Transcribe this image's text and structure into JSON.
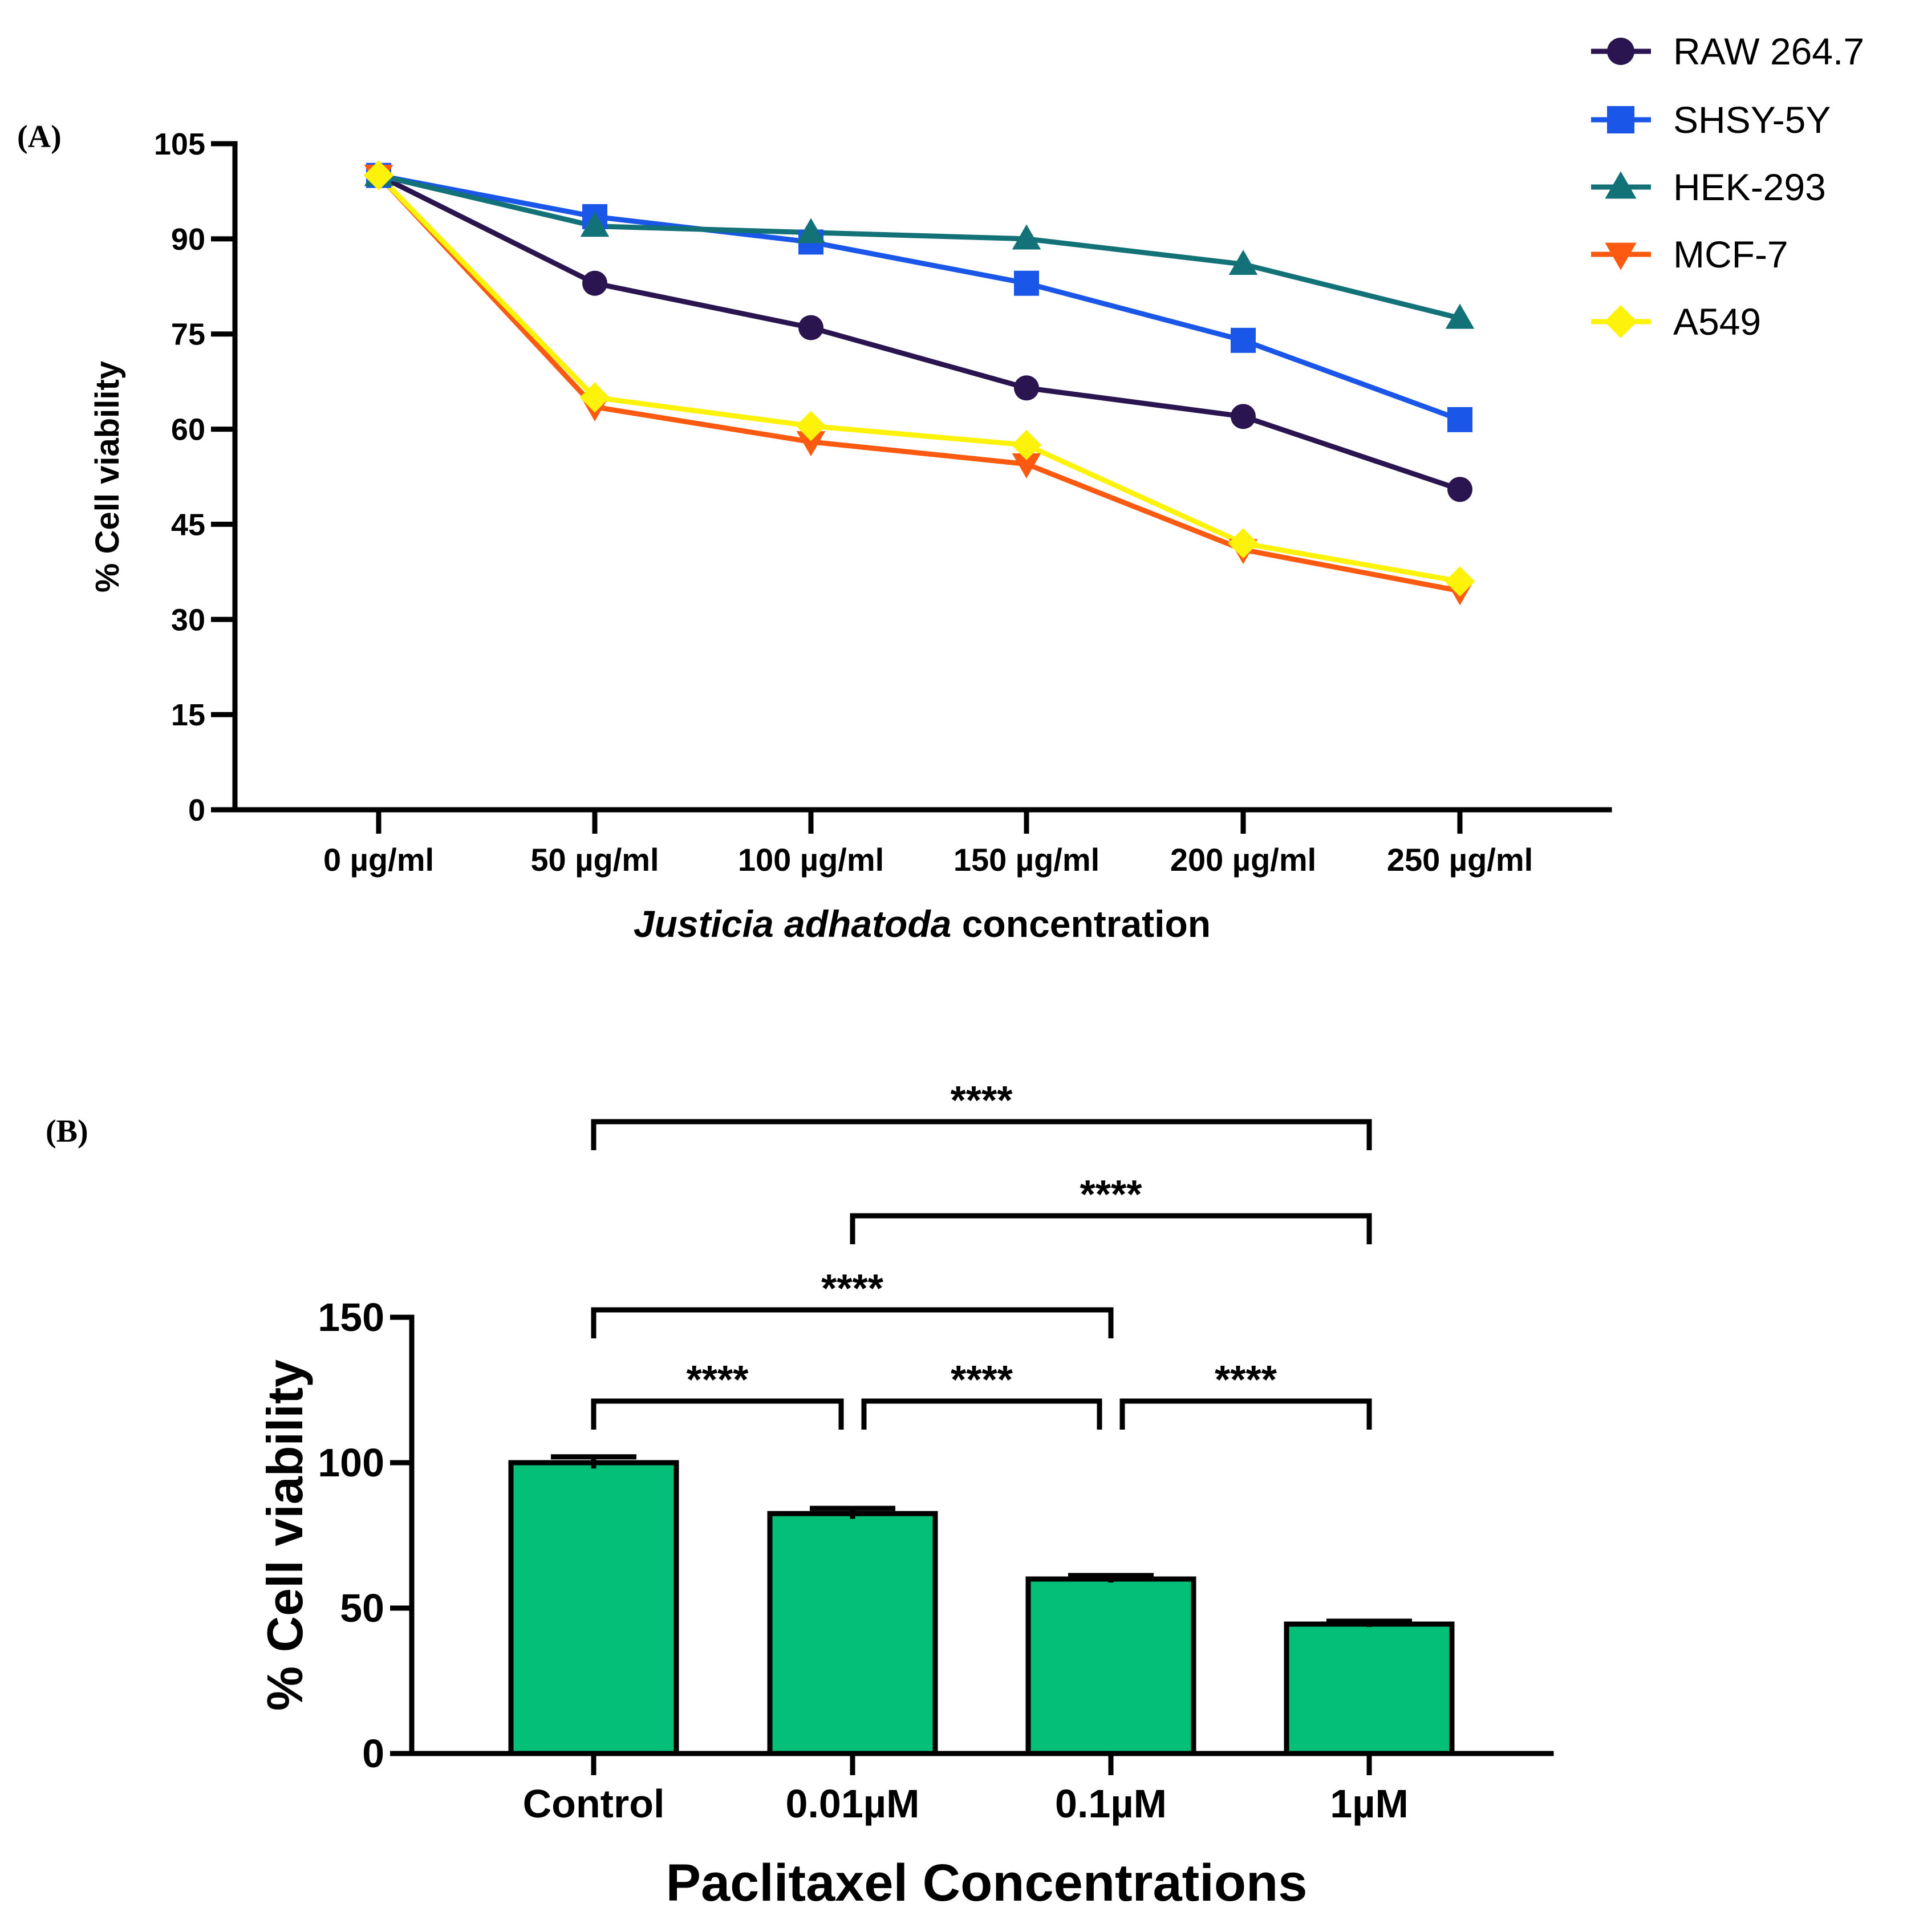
{
  "chart_data": [
    {
      "panel_label": "(A)",
      "type": "line",
      "xlabel_italic": "Justicia adhatoda",
      "xlabel_rest": " concentration",
      "ylabel": "% Cell viability",
      "categories": [
        "0 µg/ml",
        "50 µg/ml",
        "100 µg/ml",
        "150 µg/ml",
        "200 µg/ml",
        "250 µg/ml"
      ],
      "ylim": [
        0,
        105
      ],
      "yticks": [
        "0",
        "15",
        "30",
        "45",
        "60",
        "75",
        "90",
        "105"
      ],
      "series": [
        {
          "name": "RAW 264.7",
          "color": "#2a1550",
          "marker": "circle",
          "values": [
            100,
            83,
            76,
            66.5,
            62,
            50.5
          ]
        },
        {
          "name": "SHSY-5Y",
          "color": "#1a56e8",
          "marker": "square",
          "values": [
            100,
            93.5,
            89.5,
            83,
            74,
            61.5
          ]
        },
        {
          "name": "HEK-293",
          "color": "#137178",
          "marker": "triangle-up",
          "values": [
            100,
            92,
            91,
            90,
            86,
            77.5
          ]
        },
        {
          "name": "MCF-7",
          "color": "#fb5a10",
          "marker": "triangle-down",
          "values": [
            100,
            63.5,
            58,
            54.5,
            41,
            34.5
          ]
        },
        {
          "name": "A549",
          "color": "#fcf20a",
          "marker": "diamond",
          "values": [
            100,
            65,
            60.5,
            57.5,
            42,
            36
          ]
        }
      ]
    },
    {
      "panel_label": "(B)",
      "type": "bar",
      "xlabel": "Paclitaxel Concentrations",
      "ylabel": "% Cell viability",
      "categories": [
        "Control",
        "0.01µM",
        "0.1µM",
        "1µM"
      ],
      "values": [
        100,
        82.5,
        60,
        44.5
      ],
      "errors": [
        2,
        1.8,
        1.2,
        1
      ],
      "bar_color": "#04bf78",
      "ylim": [
        0,
        150
      ],
      "yticks": [
        "0",
        "50",
        "100",
        "150"
      ],
      "significance": [
        {
          "from": 0,
          "to": 3,
          "label": "****"
        },
        {
          "from": 1,
          "to": 3,
          "label": "****"
        },
        {
          "from": 0,
          "to": 2,
          "label": "****"
        },
        {
          "from": 0,
          "to": 1,
          "label": "****"
        },
        {
          "from": 1,
          "to": 2,
          "label": "****"
        },
        {
          "from": 2,
          "to": 3,
          "label": "****"
        }
      ]
    }
  ]
}
